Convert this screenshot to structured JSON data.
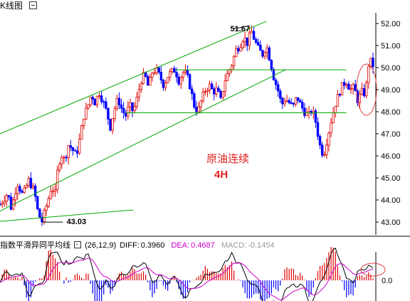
{
  "header": {
    "title": "K线图",
    "icon": "minimize-box-icon"
  },
  "chart_data": {
    "type": "candlestick",
    "title": "原油连续",
    "timeframe": "4H",
    "y_axis_ticks": [
      "52.00",
      "51.00",
      "50.00",
      "49.00",
      "48.00",
      "47.00",
      "46.00",
      "45.00",
      "44.00",
      "43.00"
    ],
    "ylim": [
      42.5,
      52.5
    ],
    "annotations": [
      {
        "text": "51.67",
        "value": 51.67
      },
      {
        "text": "43.03",
        "value": 43.03
      }
    ],
    "upper_channel_line": {
      "from": [
        0,
        47.0
      ],
      "to": [
        140,
        52.1
      ]
    },
    "lower_channel_line": {
      "from": [
        0,
        43.5
      ],
      "to": [
        150,
        49.9
      ]
    },
    "horizontal_levels": [
      49.9,
      47.95
    ],
    "bottom_support_line": {
      "from": [
        0,
        43.03
      ],
      "to": [
        70,
        43.55
      ]
    },
    "price_path": [
      [
        0,
        43.8
      ],
      [
        4,
        44.3
      ],
      [
        6,
        43.6
      ],
      [
        9,
        44.8
      ],
      [
        12,
        44.2
      ],
      [
        15,
        44.9
      ],
      [
        18,
        44.4
      ],
      [
        20,
        43.4
      ],
      [
        22,
        43.03
      ],
      [
        25,
        43.9
      ],
      [
        27,
        44.6
      ],
      [
        29,
        44.3
      ],
      [
        30,
        45.2
      ],
      [
        32,
        46.1
      ],
      [
        34,
        45.8
      ],
      [
        36,
        46.5
      ],
      [
        38,
        46.3
      ],
      [
        40,
        46.0
      ],
      [
        42,
        46.8
      ],
      [
        44,
        47.8
      ],
      [
        46,
        48.2
      ],
      [
        48,
        48.8
      ],
      [
        50,
        48.4
      ],
      [
        52,
        48.9
      ],
      [
        54,
        48.5
      ],
      [
        56,
        48.0
      ],
      [
        58,
        47.3
      ],
      [
        60,
        48.1
      ],
      [
        62,
        48.6
      ],
      [
        64,
        48.1
      ],
      [
        66,
        47.8
      ],
      [
        68,
        48.3
      ],
      [
        70,
        48.0
      ],
      [
        72,
        48.6
      ],
      [
        74,
        49.4
      ],
      [
        76,
        49.7
      ],
      [
        78,
        49.1
      ],
      [
        80,
        49.8
      ],
      [
        82,
        49.9
      ],
      [
        84,
        49.6
      ],
      [
        86,
        49.2
      ],
      [
        88,
        49.6
      ],
      [
        90,
        49.8
      ],
      [
        92,
        49.9
      ],
      [
        94,
        49.4
      ],
      [
        96,
        49.8
      ],
      [
        98,
        49.7
      ],
      [
        100,
        49.1
      ],
      [
        102,
        48.3
      ],
      [
        104,
        48.0
      ],
      [
        106,
        48.6
      ],
      [
        108,
        49.0
      ],
      [
        110,
        49.2
      ],
      [
        112,
        48.9
      ],
      [
        114,
        49.0
      ],
      [
        116,
        48.5
      ],
      [
        118,
        49.4
      ],
      [
        120,
        49.8
      ],
      [
        122,
        50.2
      ],
      [
        124,
        50.8
      ],
      [
        126,
        51.0
      ],
      [
        128,
        51.4
      ],
      [
        130,
        51.1
      ],
      [
        132,
        51.67
      ],
      [
        134,
        51.2
      ],
      [
        136,
        50.8
      ],
      [
        138,
        50.6
      ],
      [
        140,
        51.0
      ],
      [
        142,
        50.3
      ],
      [
        144,
        49.5
      ],
      [
        146,
        49.0
      ],
      [
        148,
        48.3
      ],
      [
        150,
        48.6
      ],
      [
        152,
        48.4
      ],
      [
        154,
        48.2
      ],
      [
        156,
        48.7
      ],
      [
        158,
        48.3
      ],
      [
        160,
        48.0
      ],
      [
        162,
        47.8
      ],
      [
        164,
        48.1
      ],
      [
        166,
        47.5
      ],
      [
        168,
        46.5
      ],
      [
        170,
        46.0
      ],
      [
        172,
        46.8
      ],
      [
        174,
        47.6
      ],
      [
        176,
        48.3
      ],
      [
        178,
        48.8
      ],
      [
        180,
        49.2
      ],
      [
        182,
        49.4
      ],
      [
        184,
        49.0
      ],
      [
        186,
        49.1
      ],
      [
        188,
        48.5
      ],
      [
        190,
        48.9
      ],
      [
        192,
        48.8
      ],
      [
        194,
        50.4
      ],
      [
        196,
        50.1
      ]
    ],
    "highlight_ellipses": [
      "price-pane-latest",
      "macd-pane-latest"
    ],
    "macd": {
      "name": "指数平滑异同平均线",
      "params": "(26,12,9)",
      "diff_label": "DIFF:",
      "diff": "0.3960",
      "dea_label": "DEA:",
      "dea": "0.4687",
      "macd_label": "MACD:",
      "macd": "-0.1454",
      "zero_tick": "0.0",
      "colors": {
        "diff": "#000000",
        "dea": "#cc00cc",
        "macd_label": "#999999",
        "up": "#d00000",
        "down": "#0000cc"
      }
    },
    "colors": {
      "up": "#e00000",
      "down": "#0000ff",
      "channel": "#00aa00",
      "ellipse": "#e04040",
      "annotation": "#e02020"
    }
  }
}
